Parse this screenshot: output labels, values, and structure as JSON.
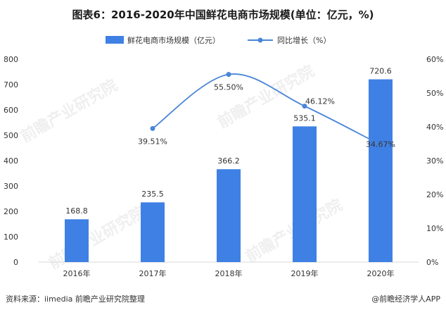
{
  "title": "图表6：2016-2020年中国鲜花电商市场规模(单位：亿元，%)",
  "source": "资料来源：iimedia 前瞻产业研究院整理",
  "credit": "@前瞻经济学人APP",
  "watermark": "前瞻产业研究院",
  "chart_data": {
    "type": "bar",
    "categories": [
      "2016年",
      "2017年",
      "2018年",
      "2019年",
      "2020年"
    ],
    "series": [
      {
        "name": "鲜花电商市场规模（亿元）",
        "type": "bar",
        "axis": "left",
        "values": [
          168.8,
          235.5,
          366.2,
          535.1,
          720.6
        ],
        "labels": [
          "168.8",
          "235.5",
          "366.2",
          "535.1",
          "720.6"
        ],
        "color": "#3f80e5"
      },
      {
        "name": "同比增长（%）",
        "type": "line",
        "axis": "right",
        "values": [
          null,
          39.51,
          55.5,
          46.12,
          34.67
        ],
        "labels": [
          "",
          "39.51%",
          "55.50%",
          "46.12%",
          "34.67%"
        ],
        "color": "#4a86d8"
      }
    ],
    "y_left": {
      "min": 0,
      "max": 800,
      "ticks": [
        "0",
        "100",
        "200",
        "300",
        "400",
        "500",
        "600",
        "700",
        "800"
      ]
    },
    "y_right": {
      "min": 0,
      "max": 60,
      "ticks": [
        "0%",
        "10%",
        "20%",
        "30%",
        "40%",
        "50%",
        "60%"
      ]
    },
    "legend_position": "top-center",
    "grid": false
  }
}
